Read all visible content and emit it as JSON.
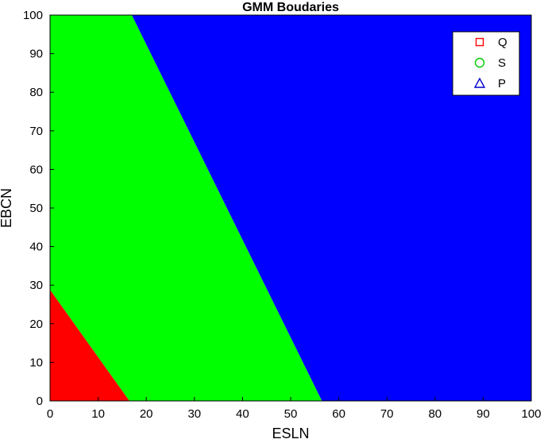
{
  "chart_data": {
    "type": "area",
    "title": "GMM Boudaries",
    "xlabel": "ESLN",
    "ylabel": "EBCN",
    "xlim": [
      0,
      100
    ],
    "ylim": [
      0,
      100
    ],
    "x_ticks": [
      0,
      10,
      20,
      30,
      40,
      50,
      60,
      70,
      80,
      90,
      100
    ],
    "y_ticks": [
      0,
      10,
      20,
      30,
      40,
      50,
      60,
      70,
      80,
      90,
      100
    ],
    "grid": false,
    "legend_position": "top-right",
    "regions": [
      {
        "name": "Q",
        "marker": "square",
        "color": "#ff0000",
        "marker_color": "#ff0000",
        "polygon": [
          [
            0,
            0
          ],
          [
            16.5,
            0
          ],
          [
            0,
            28.8
          ]
        ]
      },
      {
        "name": "S",
        "marker": "circle",
        "color": "#00ff00",
        "marker_color": "#00cc00",
        "polygon": [
          [
            16.5,
            0
          ],
          [
            56.5,
            0
          ],
          [
            17,
            100
          ],
          [
            0,
            100
          ],
          [
            0,
            28.8
          ]
        ]
      },
      {
        "name": "P",
        "marker": "triangle",
        "color": "#0000ff",
        "marker_color": "#0000cc",
        "polygon": [
          [
            56.5,
            0
          ],
          [
            100,
            0
          ],
          [
            100,
            100
          ],
          [
            17,
            100
          ]
        ]
      }
    ]
  }
}
